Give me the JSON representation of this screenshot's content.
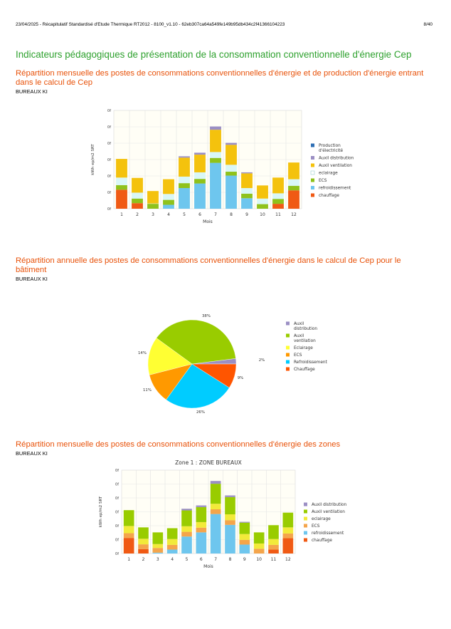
{
  "header": {
    "left": "23/04/2025 - Récapitulatif Standardisé d'Etude Thermique RT2012 - 8100_v1.10 - 62eb307ca64a549fe149b95db434c2f41366104223",
    "page": "8/40"
  },
  "page_title": "Indicateurs pédagogiques de présentation de la consommation conventionnelle d'énergie Cep",
  "sections": [
    {
      "title": "Répartition mensuelle des postes de consommations conventionnelles d'énergie et de production d'énergie entrant dans le calcul de Cep",
      "subtitle": "BUREAUX KI"
    },
    {
      "title": "Répartition annuelle des postes de consommations conventionnelles d'énergie dans le calcul de Cep pour le bâtiment",
      "subtitle": "BUREAUX KI"
    },
    {
      "title": "Répartition mensuelle des postes de consommations conventionnelles d'énergie des zones",
      "subtitle": "BUREAUX KI"
    }
  ],
  "colors": {
    "production": "#2f6fb5",
    "auxil_distribution": "#9b8fc4",
    "auxil_ventilation_1": "#f4c20d",
    "eclairage_1": "#d9f7f7",
    "ecs_1": "#8fc21b",
    "refroidissement": "#6ec6ee",
    "chauffage": "#f05a14",
    "pie_auxil_ventilation": "#99cc00",
    "pie_eclairage": "#ffff33",
    "pie_ecs": "#ff9900",
    "pie_refroidissement": "#00ccff",
    "pie_chauffage": "#ff5500",
    "z_auxil_ventilation": "#99cc00",
    "z_eclairage": "#f2ea3a",
    "z_ecs": "#f4a54b"
  },
  "chart_data": [
    {
      "type": "bar",
      "stacked": true,
      "xlabel": "Mois",
      "ylabel": "kWh ep/m2 SRT",
      "y_tick_labels": [
        "0f",
        "0f",
        "0f",
        "0f",
        "0f",
        "0f",
        "0f"
      ],
      "ylim": [
        0,
        6
      ],
      "categories": [
        "1",
        "2",
        "3",
        "4",
        "5",
        "6",
        "7",
        "8",
        "9",
        "10",
        "11",
        "12"
      ],
      "legend_position": "right",
      "series": [
        {
          "name": "chauffage",
          "color": "#f05a14",
          "values": [
            1.16,
            0.34,
            0,
            0,
            0,
            0,
            0,
            0,
            0,
            0,
            0.3,
            1.12
          ]
        },
        {
          "name": "refroidissement",
          "color": "#6ec6ee",
          "values": [
            0,
            0,
            0,
            0.24,
            1.26,
            1.54,
            2.8,
            2.02,
            0.64,
            0,
            0,
            0
          ]
        },
        {
          "name": "ECS",
          "color": "#8fc21b",
          "values": [
            0.28,
            0.28,
            0.3,
            0.3,
            0.3,
            0.28,
            0.3,
            0.24,
            0.28,
            0.28,
            0.3,
            0.28
          ]
        },
        {
          "name": "eclairage",
          "color": "#d9f7f7",
          "values": [
            0.46,
            0.36,
            0.02,
            0.36,
            0.4,
            0.4,
            0.36,
            0.42,
            0.34,
            0.34,
            0.34,
            0.4
          ]
        },
        {
          "name": "Auxil ventilation",
          "color": "#f4c20d",
          "values": [
            1.14,
            0.9,
            0.76,
            0.9,
            1.16,
            1.08,
            1.36,
            1.22,
            0.9,
            0.8,
            0.96,
            1.02
          ]
        },
        {
          "name": "Auxil distribution",
          "color": "#9b8fc4",
          "values": [
            0,
            0,
            0,
            0,
            0.08,
            0.12,
            0.2,
            0.12,
            0.06,
            0,
            0,
            0
          ]
        },
        {
          "name": "Production d'électricité",
          "color": "#2f6fb5",
          "values": [
            0,
            0,
            0,
            0,
            0,
            0,
            0,
            0,
            0,
            0,
            0,
            0
          ]
        }
      ]
    },
    {
      "type": "pie",
      "slices": [
        {
          "name": "Auxil distribution",
          "value": 2,
          "label": "2%",
          "color": "#9b8fc4"
        },
        {
          "name": "Auxil ventilation",
          "value": 38,
          "label": "38%",
          "color": "#99cc00"
        },
        {
          "name": "Eclairage",
          "value": 14,
          "label": "14%",
          "color": "#ffff33"
        },
        {
          "name": "ECS",
          "value": 11,
          "label": "11%",
          "color": "#ff9900"
        },
        {
          "name": "Refroidissement",
          "value": 26,
          "label": "26%",
          "color": "#00ccff"
        },
        {
          "name": "Chauffage",
          "value": 9,
          "label": "9%",
          "color": "#ff5500"
        }
      ],
      "legend_position": "right"
    },
    {
      "type": "bar",
      "stacked": true,
      "title": "Zone 1 : ZONE BUREAUX",
      "xlabel": "Mois",
      "ylabel": "kWh ep/m2 SRT",
      "y_tick_labels": [
        "0f",
        "0f",
        "0f",
        "0f",
        "0f",
        "0f",
        "0f"
      ],
      "ylim": [
        0,
        6
      ],
      "categories": [
        "1",
        "2",
        "3",
        "4",
        "5",
        "6",
        "7",
        "8",
        "9",
        "10",
        "11",
        "12"
      ],
      "legend_position": "right",
      "series": [
        {
          "name": "chauffage",
          "color": "#f05a14",
          "values": [
            1.12,
            0.32,
            0,
            0,
            0,
            0,
            0,
            0,
            0,
            0,
            0.28,
            1.1
          ]
        },
        {
          "name": "refroidissement",
          "color": "#6ec6ee",
          "values": [
            0,
            0,
            0.06,
            0.28,
            1.22,
            1.52,
            2.84,
            2.06,
            0.64,
            0,
            0,
            0
          ]
        },
        {
          "name": "ECS",
          "color": "#f4a54b",
          "values": [
            0.34,
            0.34,
            0.34,
            0.34,
            0.34,
            0.34,
            0.34,
            0.34,
            0.34,
            0.34,
            0.34,
            0.34
          ]
        },
        {
          "name": "eclairage",
          "color": "#f2ea3a",
          "values": [
            0.52,
            0.4,
            0.28,
            0.42,
            0.4,
            0.4,
            0.4,
            0.42,
            0.42,
            0.38,
            0.42,
            0.44
          ]
        },
        {
          "name": "Auxil ventilation",
          "color": "#99cc00",
          "values": [
            1.14,
            0.82,
            0.84,
            0.78,
            1.14,
            1.08,
            1.44,
            1.24,
            0.82,
            0.8,
            1.0,
            1.06
          ]
        },
        {
          "name": "Auxil distribution",
          "color": "#9b8fc4",
          "values": [
            0,
            0,
            0,
            0,
            0.12,
            0.12,
            0.2,
            0.12,
            0.06,
            0,
            0,
            0
          ]
        }
      ]
    }
  ]
}
